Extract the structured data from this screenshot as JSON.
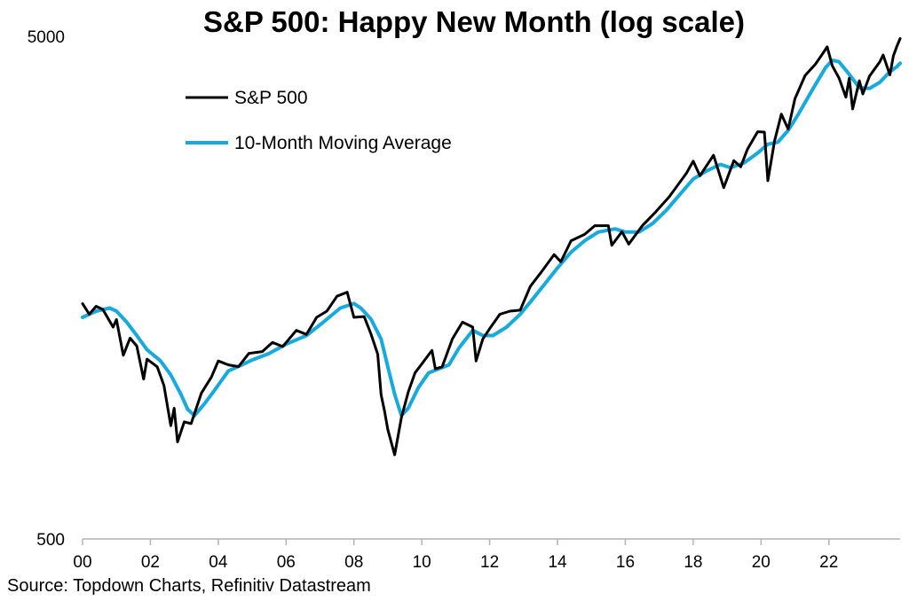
{
  "chart_data": {
    "type": "line",
    "title": "S&P 500: Happy New Month (log scale)",
    "xlabel": "",
    "ylabel": "",
    "y_scale": "log",
    "ylim": [
      500,
      5000
    ],
    "y_ticks": [
      500,
      5000
    ],
    "y_tick_labels": [
      "500",
      "5000"
    ],
    "xlim": [
      2000.0,
      2024.1
    ],
    "x_ticks": [
      2000,
      2002,
      2004,
      2006,
      2008,
      2010,
      2012,
      2014,
      2016,
      2018,
      2020,
      2022
    ],
    "x_tick_labels": [
      "00",
      "02",
      "04",
      "06",
      "08",
      "10",
      "12",
      "14",
      "16",
      "18",
      "20",
      "22"
    ],
    "grid": false,
    "legend_placement": "top-left",
    "source": "Source: Topdown Charts, Refinitiv Datastream",
    "series": [
      {
        "name": "S&P 500",
        "color": "#000000",
        "points": [
          [
            2000.0,
            1469
          ],
          [
            2000.2,
            1400
          ],
          [
            2000.4,
            1452
          ],
          [
            2000.6,
            1430
          ],
          [
            2000.9,
            1320
          ],
          [
            2001.0,
            1366
          ],
          [
            2001.2,
            1160
          ],
          [
            2001.4,
            1255
          ],
          [
            2001.6,
            1210
          ],
          [
            2001.8,
            1040
          ],
          [
            2001.9,
            1140
          ],
          [
            2002.2,
            1100
          ],
          [
            2002.4,
            1010
          ],
          [
            2002.6,
            840
          ],
          [
            2002.7,
            910
          ],
          [
            2002.8,
            780
          ],
          [
            2003.0,
            855
          ],
          [
            2003.2,
            848
          ],
          [
            2003.5,
            975
          ],
          [
            2003.8,
            1050
          ],
          [
            2004.0,
            1130
          ],
          [
            2004.3,
            1110
          ],
          [
            2004.6,
            1101
          ],
          [
            2004.9,
            1170
          ],
          [
            2005.3,
            1180
          ],
          [
            2005.6,
            1230
          ],
          [
            2005.9,
            1207
          ],
          [
            2006.3,
            1300
          ],
          [
            2006.6,
            1276
          ],
          [
            2006.9,
            1380
          ],
          [
            2007.2,
            1420
          ],
          [
            2007.5,
            1520
          ],
          [
            2007.8,
            1549
          ],
          [
            2008.0,
            1380
          ],
          [
            2008.3,
            1385
          ],
          [
            2008.5,
            1280
          ],
          [
            2008.7,
            1166
          ],
          [
            2008.8,
            968
          ],
          [
            2008.9,
            900
          ],
          [
            2009.0,
            825
          ],
          [
            2009.2,
            735
          ],
          [
            2009.4,
            872
          ],
          [
            2009.6,
            980
          ],
          [
            2009.8,
            1070
          ],
          [
            2010.0,
            1115
          ],
          [
            2010.3,
            1186
          ],
          [
            2010.4,
            1090
          ],
          [
            2010.6,
            1100
          ],
          [
            2010.9,
            1250
          ],
          [
            2011.2,
            1350
          ],
          [
            2011.5,
            1320
          ],
          [
            2011.6,
            1130
          ],
          [
            2011.8,
            1250
          ],
          [
            2012.0,
            1310
          ],
          [
            2012.3,
            1400
          ],
          [
            2012.6,
            1420
          ],
          [
            2012.9,
            1426
          ],
          [
            2013.2,
            1590
          ],
          [
            2013.5,
            1690
          ],
          [
            2013.9,
            1840
          ],
          [
            2014.1,
            1780
          ],
          [
            2014.4,
            1960
          ],
          [
            2014.8,
            2018
          ],
          [
            2015.1,
            2100
          ],
          [
            2015.5,
            2100
          ],
          [
            2015.6,
            1920
          ],
          [
            2015.9,
            2043
          ],
          [
            2016.1,
            1930
          ],
          [
            2016.5,
            2100
          ],
          [
            2016.9,
            2238
          ],
          [
            2017.3,
            2400
          ],
          [
            2017.8,
            2670
          ],
          [
            2018.0,
            2823
          ],
          [
            2018.2,
            2640
          ],
          [
            2018.6,
            2900
          ],
          [
            2018.9,
            2500
          ],
          [
            2019.2,
            2830
          ],
          [
            2019.4,
            2750
          ],
          [
            2019.6,
            2980
          ],
          [
            2019.9,
            3230
          ],
          [
            2020.1,
            3225
          ],
          [
            2020.2,
            2580
          ],
          [
            2020.4,
            3100
          ],
          [
            2020.6,
            3500
          ],
          [
            2020.8,
            3270
          ],
          [
            2021.0,
            3756
          ],
          [
            2021.3,
            4180
          ],
          [
            2021.6,
            4400
          ],
          [
            2021.8,
            4600
          ],
          [
            2021.95,
            4766
          ],
          [
            2022.1,
            4370
          ],
          [
            2022.3,
            4130
          ],
          [
            2022.5,
            3785
          ],
          [
            2022.6,
            4130
          ],
          [
            2022.7,
            3585
          ],
          [
            2022.9,
            4080
          ],
          [
            2023.0,
            3840
          ],
          [
            2023.2,
            4170
          ],
          [
            2023.5,
            4450
          ],
          [
            2023.6,
            4590
          ],
          [
            2023.8,
            4190
          ],
          [
            2023.9,
            4570
          ],
          [
            2024.0,
            4770
          ],
          [
            2024.1,
            4950
          ]
        ]
      },
      {
        "name": "10-Month Moving Average",
        "color": "#17aadf",
        "points": [
          [
            2000.0,
            1380
          ],
          [
            2000.4,
            1420
          ],
          [
            2000.8,
            1440
          ],
          [
            2001.0,
            1420
          ],
          [
            2001.3,
            1350
          ],
          [
            2001.6,
            1270
          ],
          [
            2001.9,
            1190
          ],
          [
            2002.3,
            1130
          ],
          [
            2002.6,
            1060
          ],
          [
            2002.9,
            970
          ],
          [
            2003.1,
            905
          ],
          [
            2003.3,
            880
          ],
          [
            2003.6,
            930
          ],
          [
            2003.9,
            990
          ],
          [
            2004.3,
            1080
          ],
          [
            2004.7,
            1110
          ],
          [
            2005.0,
            1135
          ],
          [
            2005.5,
            1170
          ],
          [
            2006.0,
            1220
          ],
          [
            2006.6,
            1270
          ],
          [
            2007.1,
            1350
          ],
          [
            2007.6,
            1440
          ],
          [
            2008.0,
            1470
          ],
          [
            2008.2,
            1440
          ],
          [
            2008.5,
            1370
          ],
          [
            2008.8,
            1250
          ],
          [
            2009.0,
            1100
          ],
          [
            2009.2,
            970
          ],
          [
            2009.4,
            880
          ],
          [
            2009.6,
            910
          ],
          [
            2009.9,
            1000
          ],
          [
            2010.2,
            1070
          ],
          [
            2010.5,
            1090
          ],
          [
            2010.8,
            1110
          ],
          [
            2011.1,
            1200
          ],
          [
            2011.5,
            1300
          ],
          [
            2011.8,
            1270
          ],
          [
            2012.1,
            1270
          ],
          [
            2012.5,
            1320
          ],
          [
            2012.9,
            1400
          ],
          [
            2013.2,
            1480
          ],
          [
            2013.6,
            1600
          ],
          [
            2014.0,
            1730
          ],
          [
            2014.4,
            1860
          ],
          [
            2014.8,
            1960
          ],
          [
            2015.2,
            2040
          ],
          [
            2015.7,
            2070
          ],
          [
            2016.0,
            2040
          ],
          [
            2016.4,
            2040
          ],
          [
            2016.8,
            2120
          ],
          [
            2017.2,
            2250
          ],
          [
            2017.6,
            2420
          ],
          [
            2018.0,
            2600
          ],
          [
            2018.4,
            2700
          ],
          [
            2018.8,
            2780
          ],
          [
            2019.1,
            2740
          ],
          [
            2019.5,
            2800
          ],
          [
            2019.9,
            2930
          ],
          [
            2020.2,
            3050
          ],
          [
            2020.5,
            3080
          ],
          [
            2020.8,
            3250
          ],
          [
            2021.1,
            3500
          ],
          [
            2021.5,
            3900
          ],
          [
            2021.9,
            4330
          ],
          [
            2022.1,
            4480
          ],
          [
            2022.3,
            4450
          ],
          [
            2022.6,
            4200
          ],
          [
            2022.9,
            3950
          ],
          [
            2023.2,
            3940
          ],
          [
            2023.5,
            4050
          ],
          [
            2023.8,
            4250
          ],
          [
            2024.0,
            4350
          ],
          [
            2024.1,
            4420
          ]
        ]
      }
    ]
  }
}
